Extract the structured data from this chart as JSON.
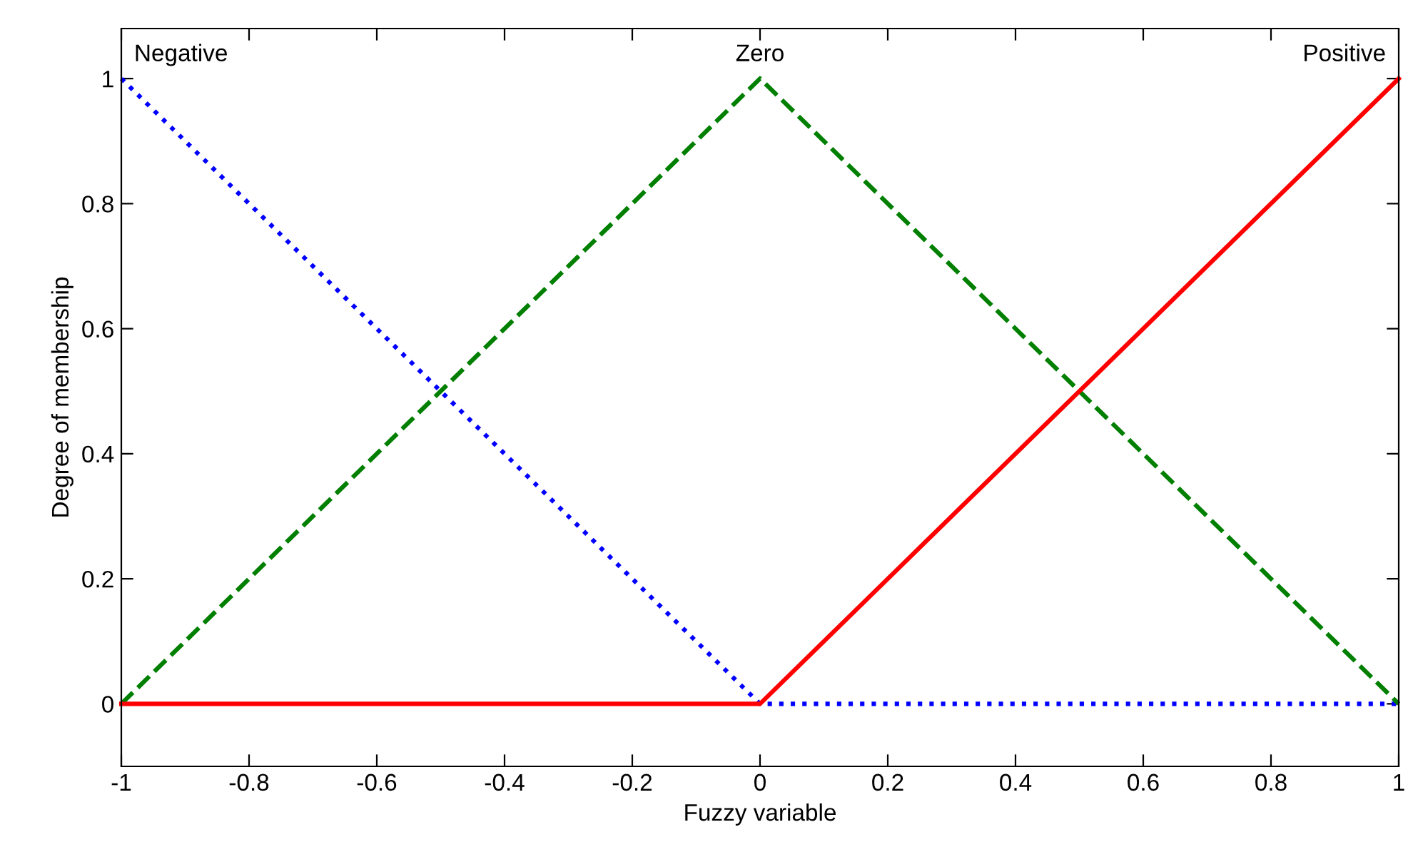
{
  "chart_data": {
    "type": "line",
    "xlabel": "Fuzzy variable",
    "ylabel": "Degree of membership",
    "x": [
      -1,
      0,
      1
    ],
    "series": [
      {
        "name": "Negative",
        "color": "#0000ff",
        "line_style": "dotted",
        "values": [
          1,
          0,
          0
        ]
      },
      {
        "name": "Zero",
        "color": "#007f00",
        "line_style": "dashed",
        "values": [
          0,
          1,
          0
        ]
      },
      {
        "name": "Positive",
        "color": "#ff0000",
        "line_style": "solid",
        "values": [
          0,
          0,
          1
        ]
      }
    ],
    "xlim": [
      -1,
      1
    ],
    "ylim": [
      -0.1,
      1.08
    ],
    "xticks": [
      -1,
      -0.8,
      -0.6,
      -0.4,
      -0.2,
      0,
      0.2,
      0.4,
      0.6,
      0.8,
      1
    ],
    "yticks": [
      0,
      0.2,
      0.4,
      0.6,
      0.8,
      1
    ],
    "grid": false,
    "legend": false,
    "marker": "none"
  }
}
